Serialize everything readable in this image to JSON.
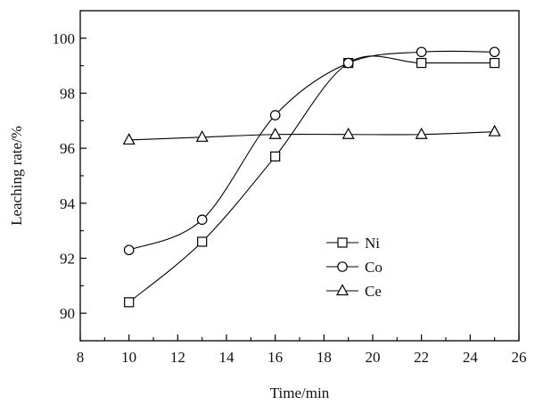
{
  "chart_data": {
    "type": "line",
    "title": "",
    "xlabel": "Time/min",
    "ylabel": "Leaching rate/%",
    "xlim": [
      8,
      26
    ],
    "ylim": [
      89,
      101
    ],
    "x_ticks": [
      8,
      10,
      12,
      14,
      16,
      18,
      20,
      22,
      24,
      26
    ],
    "x_tick_labels": [
      "8",
      "10",
      "12",
      "14",
      "16",
      "18",
      "20",
      "22",
      "24",
      "26"
    ],
    "y_ticks": [
      90,
      92,
      94,
      96,
      98,
      100
    ],
    "y_tick_labels": [
      "90",
      "92",
      "94",
      "96",
      "98",
      "100"
    ],
    "grid": false,
    "legend_position": "lower-right",
    "x": [
      10,
      13,
      16,
      19,
      22,
      25
    ],
    "series": [
      {
        "name": "Ni",
        "marker": "square",
        "values": [
          90.4,
          92.6,
          95.7,
          99.1,
          99.1,
          99.1
        ]
      },
      {
        "name": "Co",
        "marker": "circle",
        "values": [
          92.3,
          93.4,
          97.2,
          99.1,
          99.5,
          99.5
        ]
      },
      {
        "name": "Ce",
        "marker": "triangle",
        "values": [
          96.3,
          96.4,
          96.5,
          96.5,
          96.5,
          96.6
        ]
      }
    ],
    "colors": {
      "line": "#000000",
      "marker_fill": "#ffffff"
    }
  }
}
